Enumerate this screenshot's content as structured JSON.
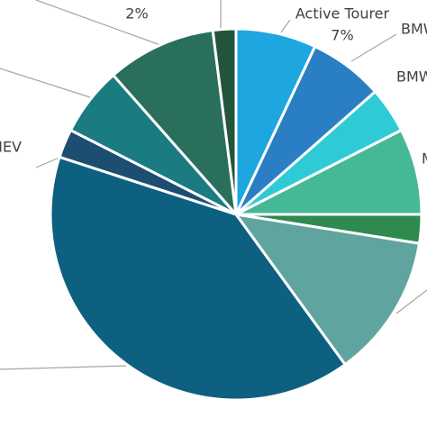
{
  "chart_data": {
    "type": "pie",
    "categories": [
      "Active Tourer",
      "BMW",
      "BMW",
      "M",
      null,
      null,
      null,
      "HEV",
      null,
      null,
      null
    ],
    "values": [
      7,
      6.5,
      4,
      7.5,
      2.5,
      12.5,
      40,
      2.5,
      6,
      9.5,
      2
    ],
    "value_labels": [
      "7%",
      null,
      null,
      null,
      null,
      null,
      null,
      null,
      null,
      null,
      "2%"
    ],
    "colors": [
      "#1ea6e0",
      "#2a7fc4",
      "#2ecbd6",
      "#45b896",
      "#2e8a4f",
      "#5fa49f",
      "#0e6080",
      "#1c4e72",
      "#1a7b80",
      "#2a6e5c",
      "#24543c"
    ]
  }
}
